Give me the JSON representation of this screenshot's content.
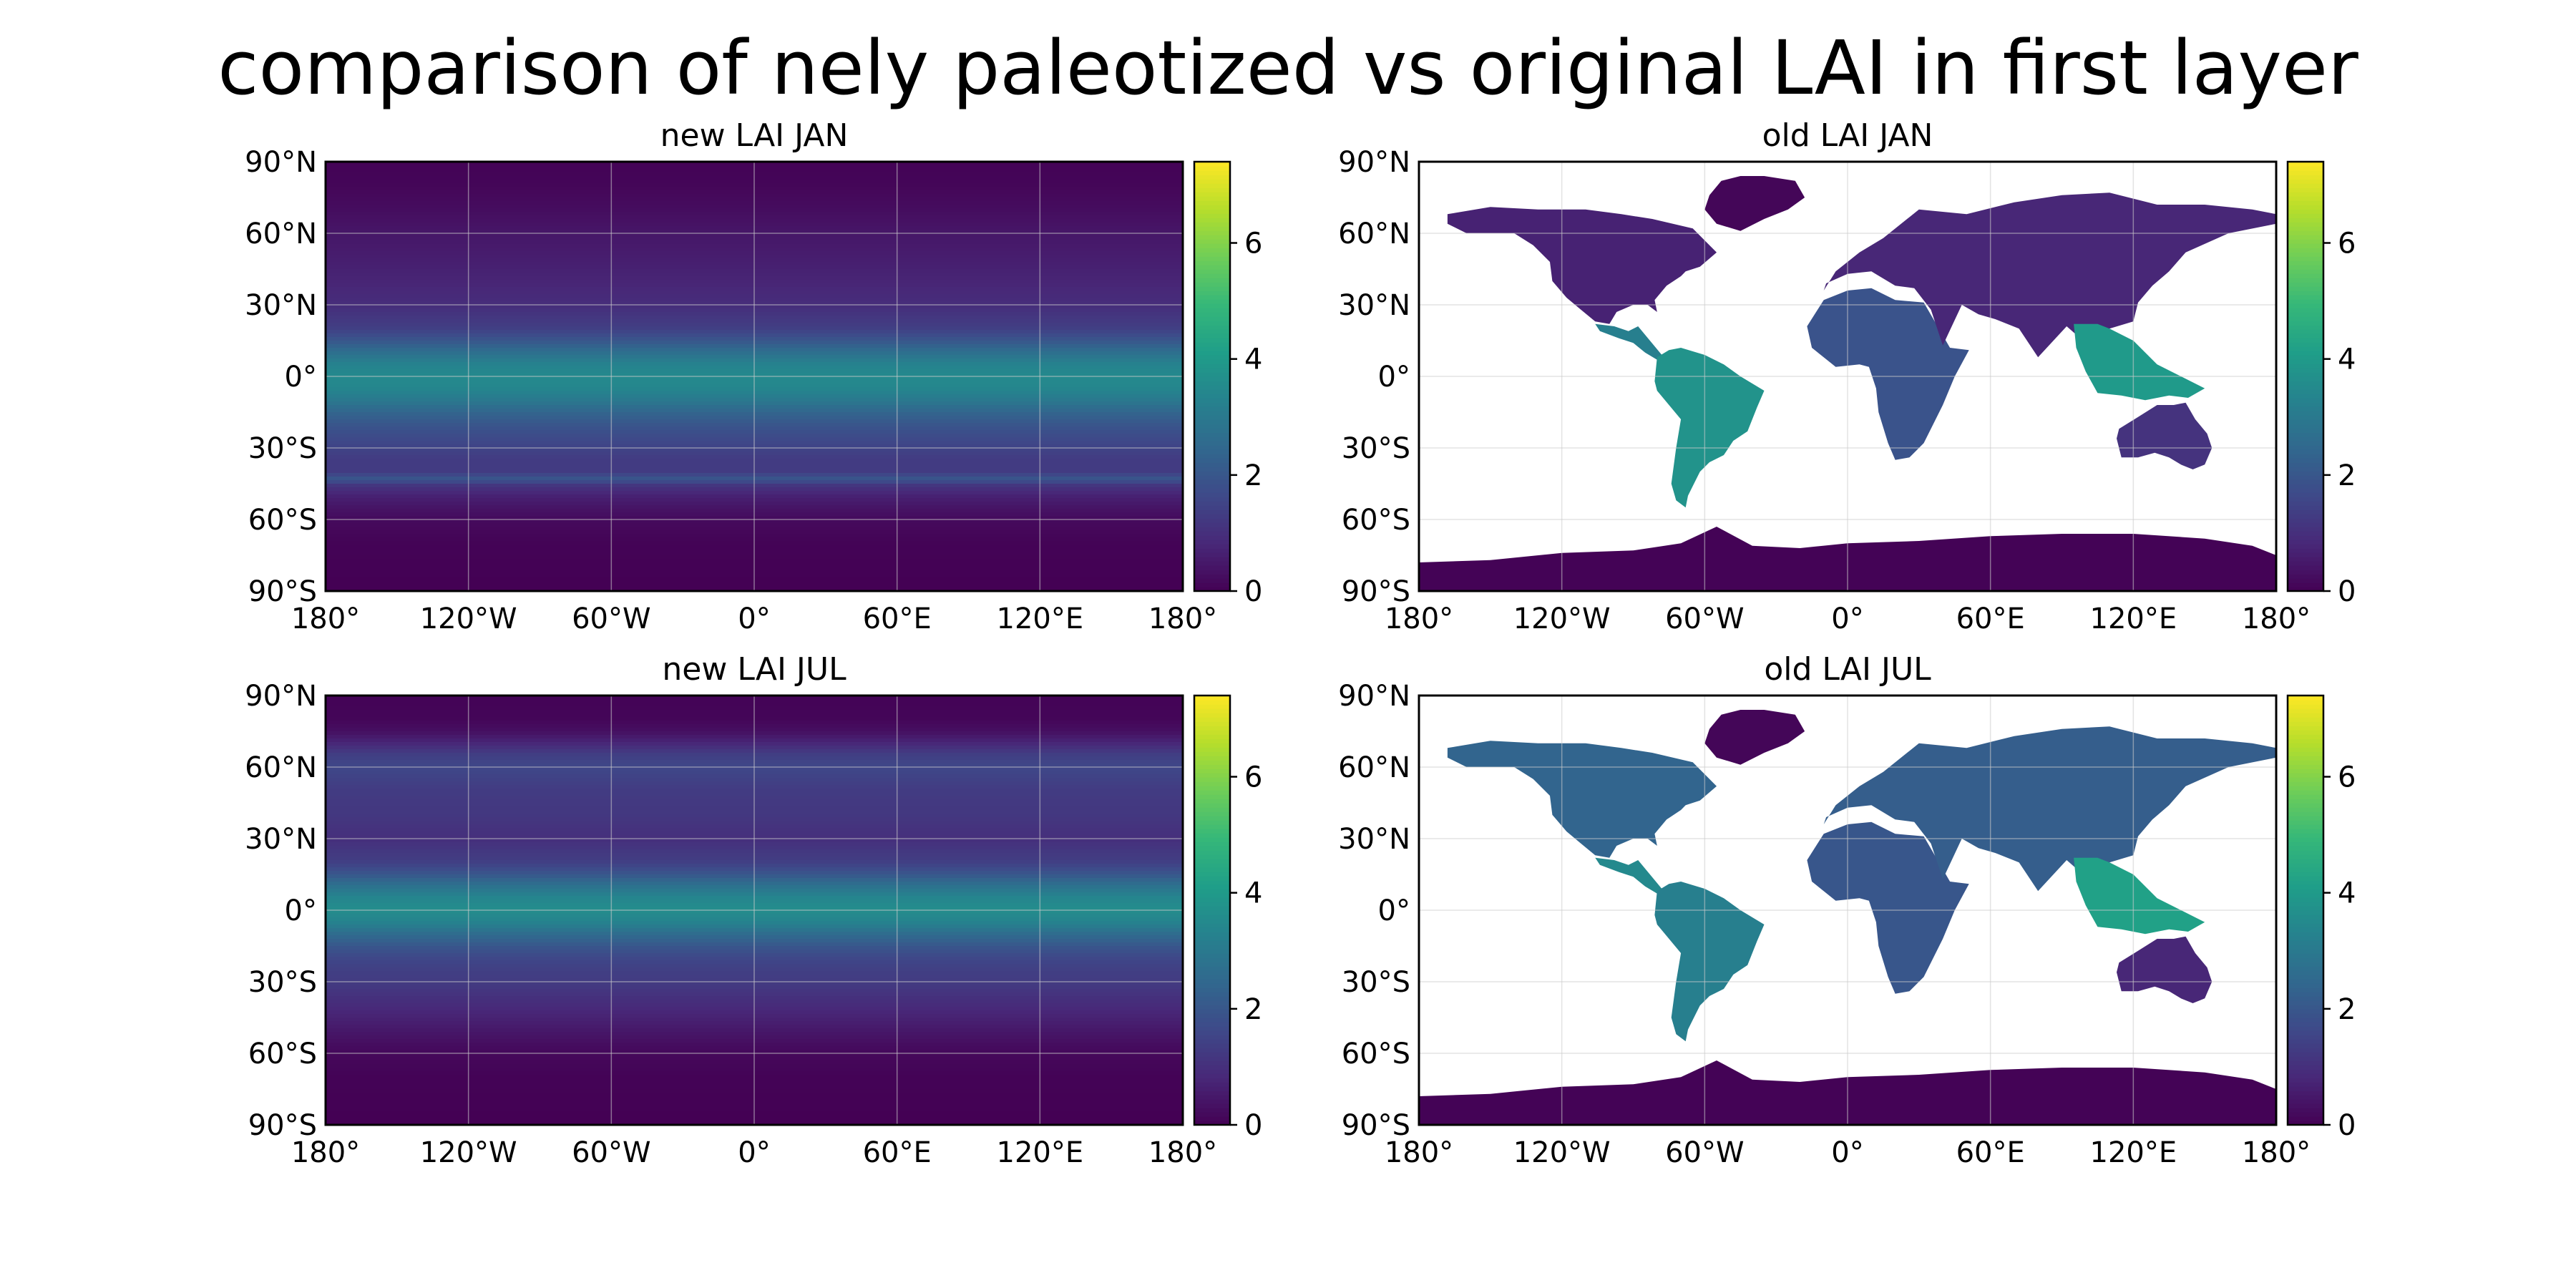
{
  "figure": {
    "title": "comparison of nely paleotized vs original LAI in first layer"
  },
  "chart_data": [
    {
      "type": "heatmap",
      "title": "new LAI JAN",
      "x_ticks": [
        "180°",
        "120°W",
        "60°W",
        "0°",
        "60°E",
        "120°E",
        "180°"
      ],
      "y_ticks": [
        "90°N",
        "60°N",
        "30°N",
        "0°",
        "30°S",
        "60°S",
        "90°S"
      ],
      "xlim": [
        -180,
        180
      ],
      "ylim": [
        -90,
        90
      ],
      "grid": true,
      "colorbar": {
        "colormap": "viridis",
        "range": [
          0,
          7.4
        ],
        "ticks": [
          0,
          2,
          4,
          6
        ]
      },
      "zonal_mean_profile": {
        "lat": [
          90,
          80,
          70,
          60,
          50,
          40,
          30,
          20,
          15,
          10,
          5,
          0,
          -5,
          -10,
          -15,
          -20,
          -25,
          -30,
          -35,
          -40,
          -43,
          -46,
          -50,
          -55,
          -60,
          -70,
          -80,
          -90
        ],
        "lai": [
          0.05,
          0.1,
          0.25,
          0.45,
          0.6,
          0.75,
          0.95,
          1.4,
          2.0,
          2.7,
          3.3,
          3.5,
          3.4,
          3.0,
          2.4,
          2.0,
          1.7,
          1.5,
          1.3,
          1.3,
          2.0,
          1.1,
          0.7,
          0.4,
          0.2,
          0.05,
          0.02,
          0.0
        ]
      }
    },
    {
      "type": "heatmap",
      "title": "old LAI JAN",
      "x_ticks": [
        "180°",
        "120°W",
        "60°W",
        "0°",
        "60°E",
        "120°E",
        "180°"
      ],
      "y_ticks": [
        "90°N",
        "60°N",
        "30°N",
        "0°",
        "30°S",
        "60°S",
        "90°S"
      ],
      "xlim": [
        -180,
        180
      ],
      "ylim": [
        -90,
        90
      ],
      "grid": true,
      "colorbar": {
        "colormap": "viridis",
        "range": [
          0,
          7.4
        ],
        "ticks": [
          0,
          2,
          4,
          6
        ]
      },
      "regions": [
        {
          "name": "Greenland",
          "lon": [
            -58,
            -53,
            -45,
            -35,
            -22,
            -18,
            -25,
            -35,
            -45,
            -55,
            -60
          ],
          "lat": [
            76,
            82,
            84,
            84,
            82,
            75,
            70,
            66,
            61,
            64,
            70
          ],
          "lai": 0.1
        },
        {
          "name": "North America",
          "lon": [
            -168,
            -150,
            -130,
            -110,
            -95,
            -82,
            -65,
            -55,
            -62,
            -68,
            -70,
            -76,
            -81,
            -80,
            -84,
            -90,
            -97,
            -100,
            -106,
            -112,
            -118,
            -124,
            -125,
            -132,
            -140,
            -150,
            -160,
            -168
          ],
          "lat": [
            68,
            71,
            70,
            70,
            68,
            66,
            62,
            52,
            46,
            44,
            42,
            38,
            32,
            27,
            30,
            30,
            27,
            22,
            23,
            28,
            33,
            40,
            48,
            55,
            60,
            60,
            60,
            64
          ],
          "lai": 0.7
        },
        {
          "name": "Central America",
          "lon": [
            -106,
            -98,
            -92,
            -88,
            -83,
            -78,
            -80,
            -85,
            -90,
            -96,
            -104
          ],
          "lat": [
            22,
            21,
            19,
            21,
            15,
            9,
            7,
            10,
            14,
            16,
            19
          ],
          "lai": 3.2
        },
        {
          "name": "South America",
          "lon": [
            -80,
            -75,
            -70,
            -60,
            -52,
            -45,
            -35,
            -38,
            -42,
            -48,
            -52,
            -58,
            -62,
            -65,
            -67,
            -68,
            -72,
            -74,
            -72,
            -70,
            -80,
            -81
          ],
          "lat": [
            8,
            11,
            12,
            9,
            5,
            0,
            -6,
            -13,
            -23,
            -27,
            -33,
            -36,
            -40,
            -46,
            -50,
            -55,
            -52,
            -45,
            -30,
            -18,
            -6,
            -2
          ],
          "lai": 3.8
        },
        {
          "name": "Africa",
          "lon": [
            -17,
            -10,
            0,
            10,
            20,
            32,
            43,
            51,
            45,
            40,
            35,
            32,
            26,
            20,
            17,
            13,
            12,
            9,
            5,
            -5,
            -15
          ],
          "lat": [
            21,
            32,
            36,
            37,
            32,
            31,
            12,
            11,
            0,
            -12,
            -22,
            -28,
            -34,
            -35,
            -28,
            -15,
            -5,
            4,
            5,
            4,
            12
          ],
          "lai": 1.9
        },
        {
          "name": "Eurasia",
          "lon": [
            -10,
            -5,
            5,
            15,
            30,
            50,
            70,
            90,
            110,
            130,
            150,
            170,
            180,
            180,
            160,
            142,
            135,
            128,
            122,
            120,
            110,
            105,
            100,
            92,
            80,
            72,
            62,
            55,
            48,
            40,
            35,
            28,
            20,
            10,
            0,
            -9
          ],
          "lat": [
            36,
            44,
            52,
            58,
            70,
            68,
            73,
            76,
            77,
            72,
            72,
            70,
            68,
            64,
            60,
            52,
            44,
            38,
            31,
            23,
            20,
            10,
            14,
            21,
            8,
            20,
            24,
            26,
            30,
            13,
            28,
            37,
            38,
            44,
            43,
            39
          ],
          "lai": 0.8
        },
        {
          "name": "South-East Asia",
          "lon": [
            95,
            105,
            110,
            120,
            130,
            140,
            150,
            143,
            135,
            125,
            115,
            105,
            100,
            96
          ],
          "lat": [
            22,
            22,
            20,
            15,
            5,
            0,
            -5,
            -9,
            -8,
            -10,
            -8,
            -7,
            2,
            12
          ],
          "lai": 4.0
        },
        {
          "name": "Australia",
          "lon": [
            114,
            122,
            130,
            137,
            142,
            146,
            151,
            153,
            150,
            145,
            140,
            135,
            129,
            122,
            115,
            113
          ],
          "lat": [
            -22,
            -17,
            -12,
            -12,
            -11,
            -18,
            -24,
            -30,
            -37,
            -39,
            -37,
            -34,
            -32,
            -34,
            -34,
            -26
          ],
          "lai": 1.1
        },
        {
          "name": "Antarctica",
          "lon": [
            -180,
            -150,
            -120,
            -90,
            -70,
            -55,
            -40,
            -20,
            0,
            30,
            60,
            90,
            120,
            150,
            170,
            180,
            180,
            -180
          ],
          "lat": [
            -78,
            -77,
            -74,
            -73,
            -70,
            -63,
            -71,
            -72,
            -70,
            -69,
            -67,
            -66,
            -66,
            -68,
            -71,
            -75,
            -90,
            -90
          ],
          "lai": 0.05
        }
      ]
    },
    {
      "type": "heatmap",
      "title": "new LAI JUL",
      "x_ticks": [
        "180°",
        "120°W",
        "60°W",
        "0°",
        "60°E",
        "120°E",
        "180°"
      ],
      "y_ticks": [
        "90°N",
        "60°N",
        "30°N",
        "0°",
        "30°S",
        "60°S",
        "90°S"
      ],
      "xlim": [
        -180,
        180
      ],
      "ylim": [
        -90,
        90
      ],
      "grid": true,
      "colorbar": {
        "colormap": "viridis",
        "range": [
          0,
          7.4
        ],
        "ticks": [
          0,
          2,
          4,
          6
        ]
      },
      "zonal_mean_profile": {
        "lat": [
          90,
          80,
          75,
          70,
          65,
          60,
          50,
          40,
          30,
          20,
          15,
          10,
          5,
          0,
          -5,
          -10,
          -15,
          -20,
          -25,
          -30,
          -35,
          -40,
          -45,
          -50,
          -55,
          -60,
          -70,
          -80,
          -90
        ],
        "lai": [
          0.05,
          0.1,
          0.3,
          0.8,
          1.4,
          1.6,
          1.3,
          1.2,
          1.0,
          1.4,
          2.0,
          2.8,
          3.4,
          3.6,
          3.3,
          2.6,
          2.0,
          1.6,
          1.4,
          1.3,
          1.1,
          0.9,
          0.7,
          0.5,
          0.3,
          0.15,
          0.05,
          0.02,
          0.0
        ]
      }
    },
    {
      "type": "heatmap",
      "title": "old LAI JUL",
      "x_ticks": [
        "180°",
        "120°W",
        "60°W",
        "0°",
        "60°E",
        "120°E",
        "180°"
      ],
      "y_ticks": [
        "90°N",
        "60°N",
        "30°N",
        "0°",
        "30°S",
        "60°S",
        "90°S"
      ],
      "xlim": [
        -180,
        180
      ],
      "ylim": [
        -90,
        90
      ],
      "grid": true,
      "colorbar": {
        "colormap": "viridis",
        "range": [
          0,
          7.4
        ],
        "ticks": [
          0,
          2,
          4,
          6
        ]
      },
      "regions": [
        {
          "name": "Greenland",
          "lon": [
            -58,
            -53,
            -45,
            -35,
            -22,
            -18,
            -25,
            -35,
            -45,
            -55,
            -60
          ],
          "lat": [
            76,
            82,
            84,
            84,
            82,
            75,
            70,
            66,
            61,
            64,
            70
          ],
          "lai": 0.1
        },
        {
          "name": "North America",
          "lon": [
            -168,
            -150,
            -130,
            -110,
            -95,
            -82,
            -65,
            -55,
            -62,
            -68,
            -70,
            -76,
            -81,
            -80,
            -84,
            -90,
            -97,
            -100,
            -106,
            -112,
            -118,
            -124,
            -125,
            -132,
            -140,
            -150,
            -160,
            -168
          ],
          "lat": [
            68,
            71,
            70,
            70,
            68,
            66,
            62,
            52,
            46,
            44,
            42,
            38,
            32,
            27,
            30,
            30,
            27,
            22,
            23,
            28,
            33,
            40,
            48,
            55,
            60,
            60,
            60,
            64
          ],
          "lai": 2.4
        },
        {
          "name": "Central America",
          "lon": [
            -106,
            -98,
            -92,
            -88,
            -83,
            -78,
            -80,
            -85,
            -90,
            -96,
            -104
          ],
          "lat": [
            22,
            21,
            19,
            21,
            15,
            9,
            7,
            10,
            14,
            16,
            19
          ],
          "lai": 3.5
        },
        {
          "name": "South America",
          "lon": [
            -80,
            -75,
            -70,
            -60,
            -52,
            -45,
            -35,
            -38,
            -42,
            -48,
            -52,
            -58,
            -62,
            -65,
            -67,
            -68,
            -72,
            -74,
            -72,
            -70,
            -80,
            -81
          ],
          "lat": [
            8,
            11,
            12,
            9,
            5,
            0,
            -6,
            -13,
            -23,
            -27,
            -33,
            -36,
            -40,
            -46,
            -50,
            -55,
            -52,
            -45,
            -30,
            -18,
            -6,
            -2
          ],
          "lai": 3.2
        },
        {
          "name": "Africa",
          "lon": [
            -17,
            -10,
            0,
            10,
            20,
            32,
            43,
            51,
            45,
            40,
            35,
            32,
            26,
            20,
            17,
            13,
            12,
            9,
            5,
            -5,
            -15
          ],
          "lat": [
            21,
            32,
            36,
            37,
            32,
            31,
            12,
            11,
            0,
            -12,
            -22,
            -28,
            -34,
            -35,
            -28,
            -15,
            -5,
            4,
            5,
            4,
            12
          ],
          "lai": 2.0
        },
        {
          "name": "Eurasia",
          "lon": [
            -10,
            -5,
            5,
            15,
            30,
            50,
            70,
            90,
            110,
            130,
            150,
            170,
            180,
            180,
            160,
            142,
            135,
            128,
            122,
            120,
            110,
            105,
            100,
            92,
            80,
            72,
            62,
            55,
            48,
            40,
            35,
            28,
            20,
            10,
            0,
            -9
          ],
          "lat": [
            36,
            44,
            52,
            58,
            70,
            68,
            73,
            76,
            77,
            72,
            72,
            70,
            68,
            64,
            60,
            52,
            44,
            38,
            31,
            23,
            20,
            10,
            14,
            21,
            8,
            20,
            24,
            26,
            30,
            13,
            28,
            37,
            38,
            44,
            43,
            39
          ],
          "lai": 2.2
        },
        {
          "name": "South-East Asia",
          "lon": [
            95,
            105,
            110,
            120,
            130,
            140,
            150,
            143,
            135,
            125,
            115,
            105,
            100,
            96
          ],
          "lat": [
            22,
            22,
            20,
            15,
            5,
            0,
            -5,
            -9,
            -8,
            -10,
            -8,
            -7,
            2,
            12
          ],
          "lai": 4.2
        },
        {
          "name": "Australia",
          "lon": [
            114,
            122,
            130,
            137,
            142,
            146,
            151,
            153,
            150,
            145,
            140,
            135,
            129,
            122,
            115,
            113
          ],
          "lat": [
            -22,
            -17,
            -12,
            -12,
            -11,
            -18,
            -24,
            -30,
            -37,
            -39,
            -37,
            -34,
            -32,
            -34,
            -34,
            -26
          ],
          "lai": 0.8
        },
        {
          "name": "Antarctica",
          "lon": [
            -180,
            -150,
            -120,
            -90,
            -70,
            -55,
            -40,
            -20,
            0,
            30,
            60,
            90,
            120,
            150,
            170,
            180,
            180,
            -180
          ],
          "lat": [
            -78,
            -77,
            -74,
            -73,
            -70,
            -63,
            -71,
            -72,
            -70,
            -69,
            -67,
            -66,
            -66,
            -68,
            -71,
            -75,
            -90,
            -90
          ],
          "lai": 0.05
        }
      ]
    }
  ]
}
